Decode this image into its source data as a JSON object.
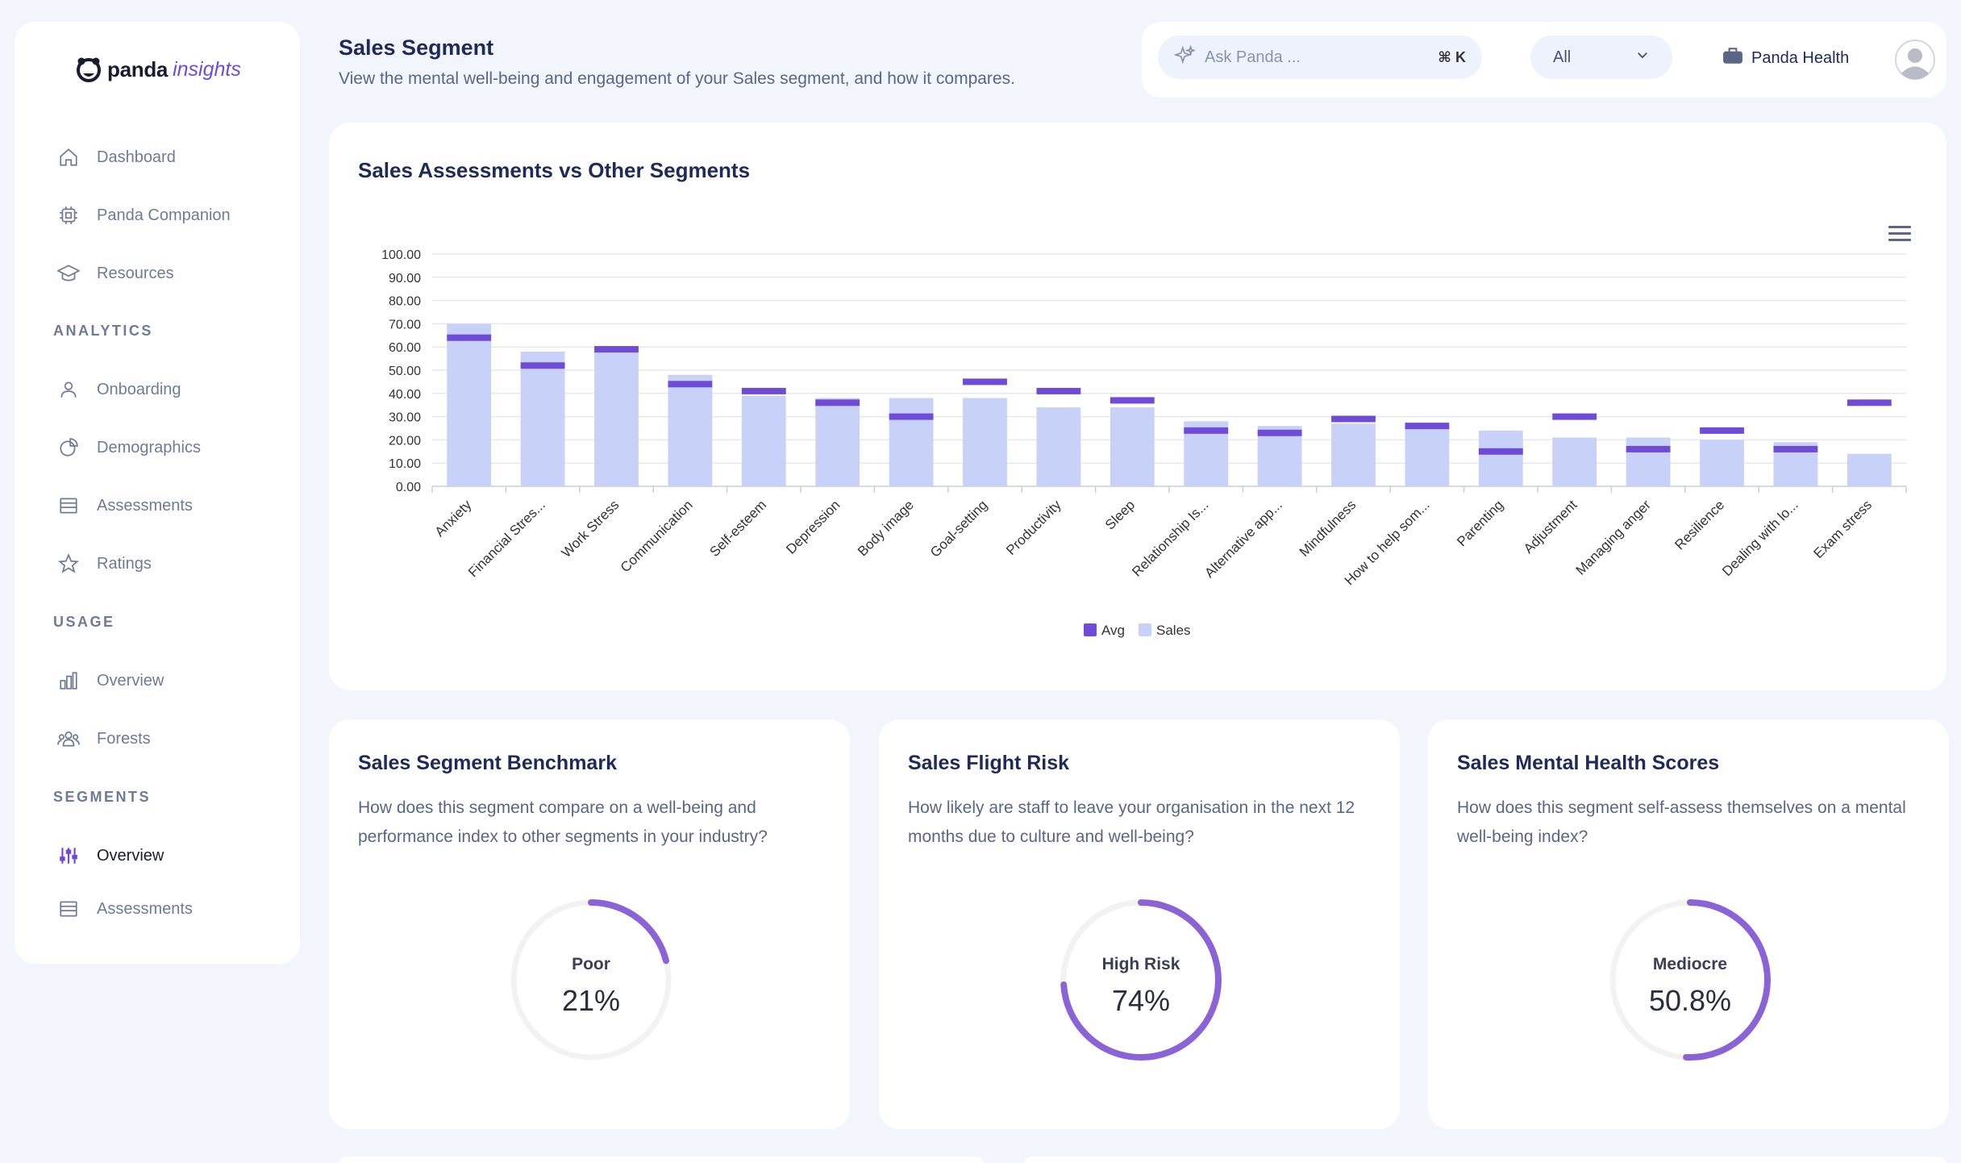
{
  "brand": {
    "name_bold": "panda",
    "name_italic": "insights"
  },
  "nav": {
    "main": [
      {
        "label": "Dashboard",
        "icon": "home-icon"
      },
      {
        "label": "Panda Companion",
        "icon": "chip-icon"
      },
      {
        "label": "Resources",
        "icon": "graduation-cap-icon"
      }
    ],
    "analytics_title": "ANALYTICS",
    "analytics": [
      {
        "label": "Onboarding",
        "icon": "user-icon"
      },
      {
        "label": "Demographics",
        "icon": "pie-icon"
      },
      {
        "label": "Assessments",
        "icon": "list-icon"
      },
      {
        "label": "Ratings",
        "icon": "star-icon"
      }
    ],
    "usage_title": "USAGE",
    "usage": [
      {
        "label": "Overview",
        "icon": "bar-chart-icon"
      },
      {
        "label": "Forests",
        "icon": "group-icon"
      }
    ],
    "segments_title": "SEGMENTS",
    "segments": [
      {
        "label": "Overview",
        "icon": "sliders-icon"
      },
      {
        "label": "Assessments",
        "icon": "list-icon"
      }
    ]
  },
  "header": {
    "title": "Sales Segment",
    "subtitle": "View the mental well-being and engagement of your Sales segment, and how it compares.",
    "search_placeholder": "Ask Panda ...",
    "search_shortcut": "⌘ K",
    "filter_value": "All",
    "org_name": "Panda Health"
  },
  "chart_card": {
    "title": "Sales Assessments vs Other Segments"
  },
  "chart_data": {
    "type": "bar",
    "title": "Sales Assessments vs Other Segments",
    "categories": [
      "Anxiety",
      "Financial Stres...",
      "Work Stress",
      "Communication",
      "Self-esteem",
      "Depression",
      "Body image",
      "Goal-setting",
      "Productivity",
      "Sleep",
      "Relationship Is...",
      "Alternative app...",
      "Mindfulness",
      "How to help som...",
      "Parenting",
      "Adjustment",
      "Managing anger",
      "Resilience",
      "Dealing with lo...",
      "Exam stress"
    ],
    "series": [
      {
        "name": "Sales",
        "type": "bar",
        "color": "#c8d2f8",
        "values": [
          70,
          58,
          58,
          48,
          39,
          38,
          38,
          38,
          34,
          34,
          28,
          26,
          27,
          25,
          24,
          21,
          21,
          20,
          19,
          14
        ]
      },
      {
        "name": "Avg",
        "type": "marker",
        "color": "#6f4bd8",
        "values": [
          64,
          52,
          59,
          44,
          41,
          36,
          30,
          45,
          41,
          37,
          24,
          23,
          29,
          26,
          15,
          30,
          16,
          24,
          16,
          36
        ]
      }
    ],
    "y_ticks": [
      "0.00",
      "10.00",
      "20.00",
      "30.00",
      "40.00",
      "50.00",
      "60.00",
      "70.00",
      "80.00",
      "90.00",
      "100.00"
    ],
    "ylim": [
      0,
      100
    ],
    "legend": [
      "Avg",
      "Sales"
    ],
    "legend_position": "bottom"
  },
  "cards": [
    {
      "title": "Sales Segment Benchmark",
      "description": "How does this segment compare on a well-being and performance index to other segments in your industry?",
      "status": "Poor",
      "value_text": "21%",
      "value": 21
    },
    {
      "title": "Sales Flight Risk",
      "description": "How likely are staff to leave your organisation in the next 12 months due to culture and well-being?",
      "status": "High Risk",
      "value_text": "74%",
      "value": 74
    },
    {
      "title": "Sales Mental Health Scores",
      "description": "How does this segment self-assess themselves on a mental well-being index?",
      "status": "Mediocre",
      "value_text": "50.8%",
      "value": 50.8
    }
  ],
  "colors": {
    "accent": "#6f4bd8",
    "bar": "#c8d2f8",
    "gauge_track": "#f2f2f2",
    "gauge_fill": "#8a64d6"
  }
}
